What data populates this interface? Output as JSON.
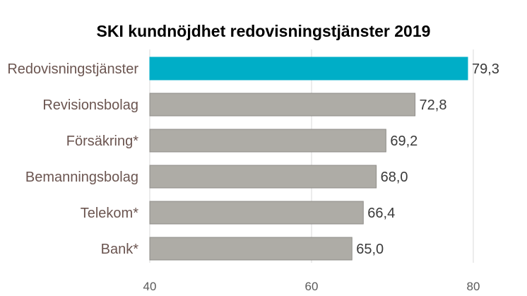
{
  "chart_data": {
    "type": "bar",
    "orientation": "horizontal",
    "title": "SKI kundnöjdhet redovisningstjänster 2019",
    "categories": [
      "Redovisningstjänster",
      "Revisionsbolag",
      "Försäkring*",
      "Bemanningsbolag",
      "Telekom*",
      "Bank*"
    ],
    "values": [
      79.3,
      72.8,
      69.2,
      68.0,
      66.4,
      65.0
    ],
    "value_labels": [
      "79,3",
      "72,8",
      "69,2",
      "68,0",
      "66,4",
      "65,0"
    ],
    "xlim": [
      40,
      80
    ],
    "xticks": [
      40,
      60,
      80
    ],
    "xtick_labels": [
      "40",
      "60",
      "80"
    ],
    "xlabel": "",
    "ylabel": "",
    "grid": "vertical",
    "legend": "none",
    "colors": {
      "highlight": "#00aec7",
      "bar": "#aeaca6",
      "bar_border": "#8f8d88",
      "grid": "#d9d9d9"
    },
    "highlight_index": 0
  }
}
